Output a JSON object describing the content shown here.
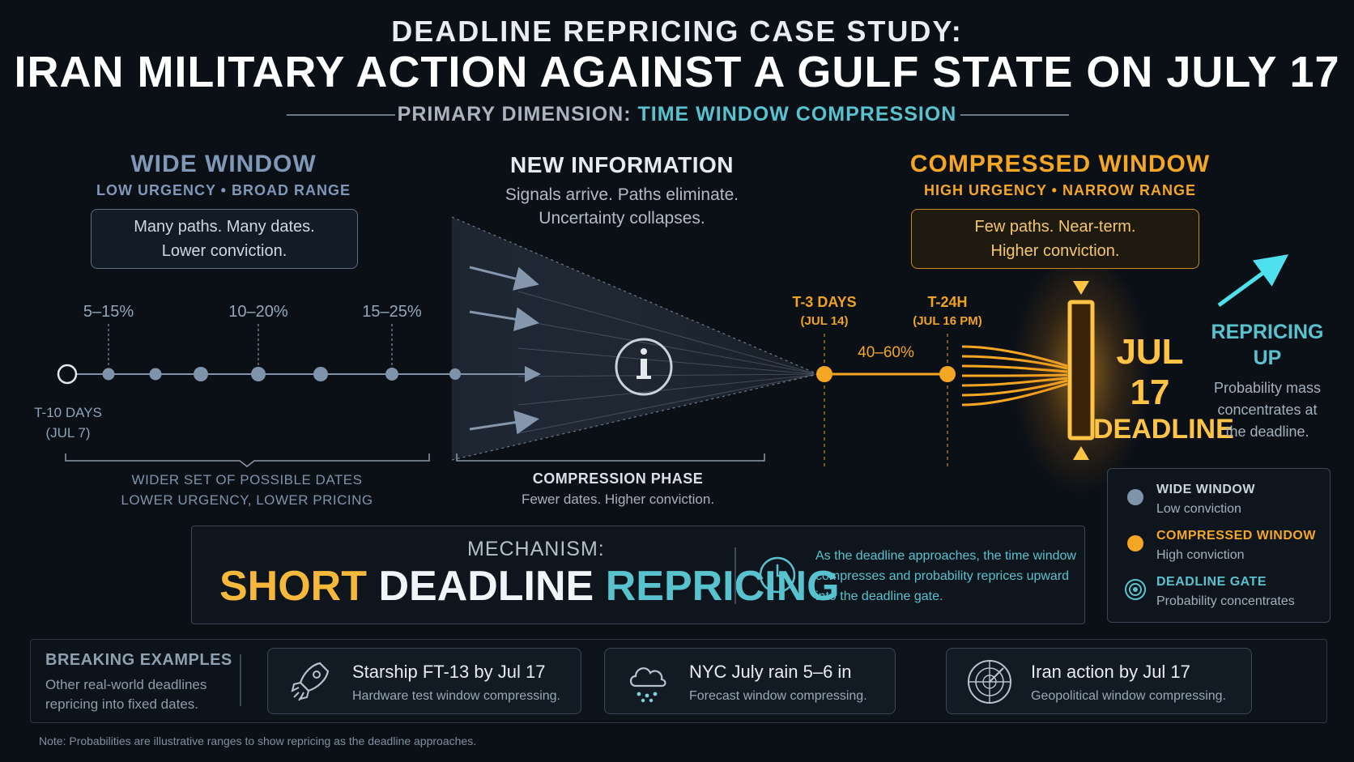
{
  "header": {
    "title_line1": "DEADLINE REPRICING CASE STUDY:",
    "title_line2": "IRAN MILITARY ACTION AGAINST A GULF STATE ON JULY 17",
    "subtitle_prefix": "PRIMARY DIMENSION:",
    "subtitle_accent": "TIME WINDOW COMPRESSION"
  },
  "wide_window": {
    "title": "WIDE WINDOW",
    "subtitle": "LOW URGENCY • BROAD RANGE",
    "box_line1": "Many paths. Many dates.",
    "box_line2": "Lower conviction.",
    "pct_1": "5–15%",
    "pct_2": "10–20%",
    "pct_3": "15–25%",
    "start_label_1": "T-10 DAYS",
    "start_label_2": "(JUL 7)",
    "bracket_line1": "WIDER SET OF POSSIBLE DATES",
    "bracket_line2": "LOWER URGENCY, LOWER PRICING"
  },
  "new_info": {
    "title": "NEW INFORMATION",
    "line1": "Signals arrive. Paths eliminate.",
    "line2": "Uncertainty collapses.",
    "phase_title": "COMPRESSION PHASE",
    "phase_desc": "Fewer dates. Higher conviction."
  },
  "compressed_window": {
    "title": "COMPRESSED WINDOW",
    "subtitle": "HIGH URGENCY • NARROW RANGE",
    "box_line1": "Few paths. Near-term.",
    "box_line2": "Higher conviction.",
    "t3_line1": "T-3 DAYS",
    "t3_line2": "(JUL 14)",
    "t24_line1": "T-24H",
    "t24_line2": "(JUL 16 PM)",
    "pct": "40–60%",
    "deadline_line1": "JUL 17",
    "deadline_line2": "DEADLINE"
  },
  "repricing": {
    "title_line1": "REPRICING",
    "title_line2": "UP",
    "desc_line1": "Probability mass",
    "desc_line2": "concentrates at",
    "desc_line3": "the deadline."
  },
  "mechanism": {
    "label": "MECHANISM:",
    "word1": "SHORT",
    "word2": "DEADLINE",
    "word3": "REPRICING",
    "desc_line1": "As the deadline approaches, the time window",
    "desc_line2": "compresses and probability reprices upward",
    "desc_line3": "into the deadline gate."
  },
  "legend": {
    "items": [
      {
        "title": "WIDE WINDOW",
        "desc": "Low conviction",
        "icon": "circle-gray-icon"
      },
      {
        "title": "COMPRESSED WINDOW",
        "desc": "High conviction",
        "icon": "circle-orange-icon"
      },
      {
        "title": "DEADLINE GATE",
        "desc": "Probability concentrates",
        "icon": "target-icon"
      }
    ]
  },
  "examples": {
    "title": "BREAKING EXAMPLES",
    "desc_line1": "Other real-world deadlines",
    "desc_line2": "repricing into fixed dates.",
    "cards": [
      {
        "title": "Starship FT-13 by Jul 17",
        "desc": "Hardware test window compressing.",
        "icon": "rocket-icon"
      },
      {
        "title": "NYC July rain 5–6 in",
        "desc": "Forecast window compressing.",
        "icon": "rain-cloud-icon"
      },
      {
        "title": "Iran action by Jul 17",
        "desc": "Geopolitical window compressing.",
        "icon": "radar-icon"
      }
    ]
  },
  "note": "Note: Probabilities are illustrative ranges to show repricing as the deadline approaches.",
  "colors": {
    "background": "#0b1017",
    "wide": "#7f93ab",
    "compressed": "#f5a623",
    "accent_teal": "#58c3cf",
    "deadline_gold": "#ffb52e"
  }
}
